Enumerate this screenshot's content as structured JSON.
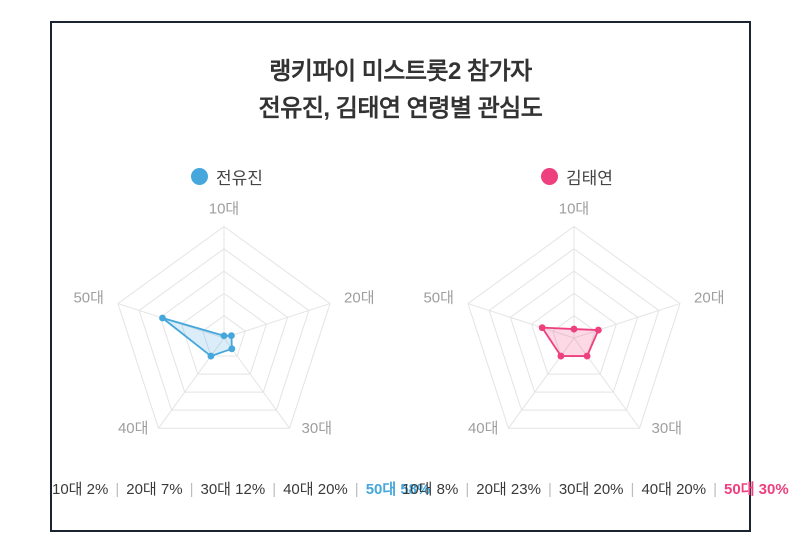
{
  "title": {
    "line1": "랭키파이 미스트롯2 참가자",
    "line2": "전유진, 김태연 연령별 관심도"
  },
  "stats_separator": "|",
  "colors": {
    "border": "#1b2430",
    "grid": "#e4e4e6",
    "axis_label": "#9e9e9e"
  },
  "chart_data": [
    {
      "type": "radar",
      "name": "전유진",
      "color": "#45a7db",
      "fill_opacity": 0.2,
      "categories": [
        "10대",
        "20대",
        "30대",
        "40대",
        "50대"
      ],
      "values": [
        2,
        7,
        12,
        20,
        58
      ],
      "unit": "%",
      "max": 100,
      "ring_step": 20,
      "grid": true,
      "legend_position": "top",
      "stats_text": "10대 2% | 20대 7% | 30대 12% | 40대 20% | 50대 58%"
    },
    {
      "type": "radar",
      "name": "김태연",
      "color": "#ee3f7e",
      "fill_opacity": 0.2,
      "categories": [
        "10대",
        "20대",
        "30대",
        "40대",
        "50대"
      ],
      "values": [
        8,
        23,
        20,
        20,
        30
      ],
      "unit": "%",
      "max": 100,
      "ring_step": 20,
      "grid": true,
      "legend_position": "top",
      "stats_text": "10대 8% | 20대 23% | 30대 20% | 40대 20% | 50대 30%"
    }
  ]
}
